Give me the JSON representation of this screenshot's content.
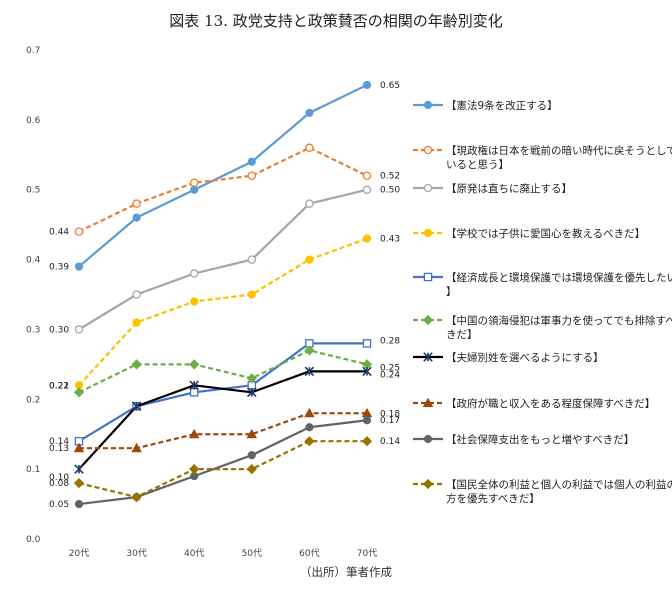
{
  "title": "図表 13.  政党支持と政策賛否の相関の年齢別変化",
  "source_note": "（出所）筆者作成",
  "chart_data": {
    "type": "line",
    "categories": [
      "20代",
      "30代",
      "40代",
      "50代",
      "60代",
      "70代"
    ],
    "ylim": [
      0,
      0.7
    ],
    "yticks": [
      "0.0",
      "0.1",
      "0.2",
      "0.3",
      "0.4",
      "0.5",
      "0.6",
      "0.7"
    ],
    "grid": false,
    "legend_position": "right",
    "series": [
      {
        "name": "【憲法9条を改正する】",
        "color": "#5b9bd5",
        "dash": "solid",
        "marker": "circle-filled",
        "values": [
          0.39,
          0.46,
          0.5,
          0.54,
          0.61,
          0.65
        ],
        "start_label": "0.39",
        "end_label": "0.65"
      },
      {
        "name": "【現政権は日本を戦前の暗い時代に戻そうとしていると思う】",
        "color": "#ed7d31",
        "dash": "dashed",
        "marker": "circle-open",
        "values": [
          0.44,
          0.48,
          0.51,
          0.52,
          0.56,
          0.52
        ],
        "start_label": "0.44",
        "end_label": "0.52"
      },
      {
        "name": "【原発は直ちに廃止する】",
        "color": "#a5a5a5",
        "dash": "solid",
        "marker": "circle-open",
        "values": [
          0.3,
          0.35,
          0.38,
          0.4,
          0.48,
          0.5
        ],
        "start_label": "0.30",
        "end_label": "0.50"
      },
      {
        "name": "【学校では子供に愛国心を教えるべきだ】",
        "color": "#ffc000",
        "dash": "dashed",
        "marker": "circle-filled",
        "values": [
          0.22,
          0.31,
          0.34,
          0.35,
          0.4,
          0.43
        ],
        "start_label": "0.22",
        "end_label": "0.43"
      },
      {
        "name": "【経済成長と環境保護では環境保護を優先したい】",
        "color": "#4472c4",
        "dash": "solid",
        "marker": "square-open",
        "values": [
          0.14,
          0.19,
          0.21,
          0.22,
          0.28,
          0.28
        ],
        "start_label": "0.14",
        "end_label": "0.28"
      },
      {
        "name": "【中国の領海侵犯は軍事力を使ってでも排除すべきだ】",
        "color": "#70ad47",
        "dash": "dashed",
        "marker": "diamond-filled",
        "values": [
          0.21,
          0.25,
          0.25,
          0.23,
          0.27,
          0.25
        ],
        "start_label": "0.21",
        "end_label": "0.25"
      },
      {
        "name": "【夫婦別姓を選べるようにする】",
        "color": "#000000",
        "dash": "solid",
        "marker": "star",
        "values": [
          0.1,
          0.19,
          0.22,
          0.21,
          0.24,
          0.24
        ],
        "start_label": "0.10",
        "end_label": "0.24"
      },
      {
        "name": "【政府が職と収入をある程度保障すべきだ】",
        "color": "#9e480e",
        "dash": "dashed",
        "marker": "triangle-filled",
        "values": [
          0.13,
          0.13,
          0.15,
          0.15,
          0.18,
          0.18
        ],
        "start_label": "0.13",
        "end_label": "0.18"
      },
      {
        "name": "【社会保障支出をもっと増やすべきだ】",
        "color": "#636363",
        "dash": "solid",
        "marker": "circle-filled",
        "values": [
          0.05,
          0.06,
          0.09,
          0.12,
          0.16,
          0.17
        ],
        "start_label": "0.05",
        "end_label": "0.17"
      },
      {
        "name": "【国民全体の利益と個人の利益では個人の利益の方を優先すべきだ】",
        "color": "#997300",
        "dash": "dashed",
        "marker": "diamond-filled",
        "values": [
          0.08,
          0.06,
          0.1,
          0.1,
          0.14,
          0.14
        ],
        "start_label": "0.08",
        "end_label": "0.14"
      }
    ]
  }
}
